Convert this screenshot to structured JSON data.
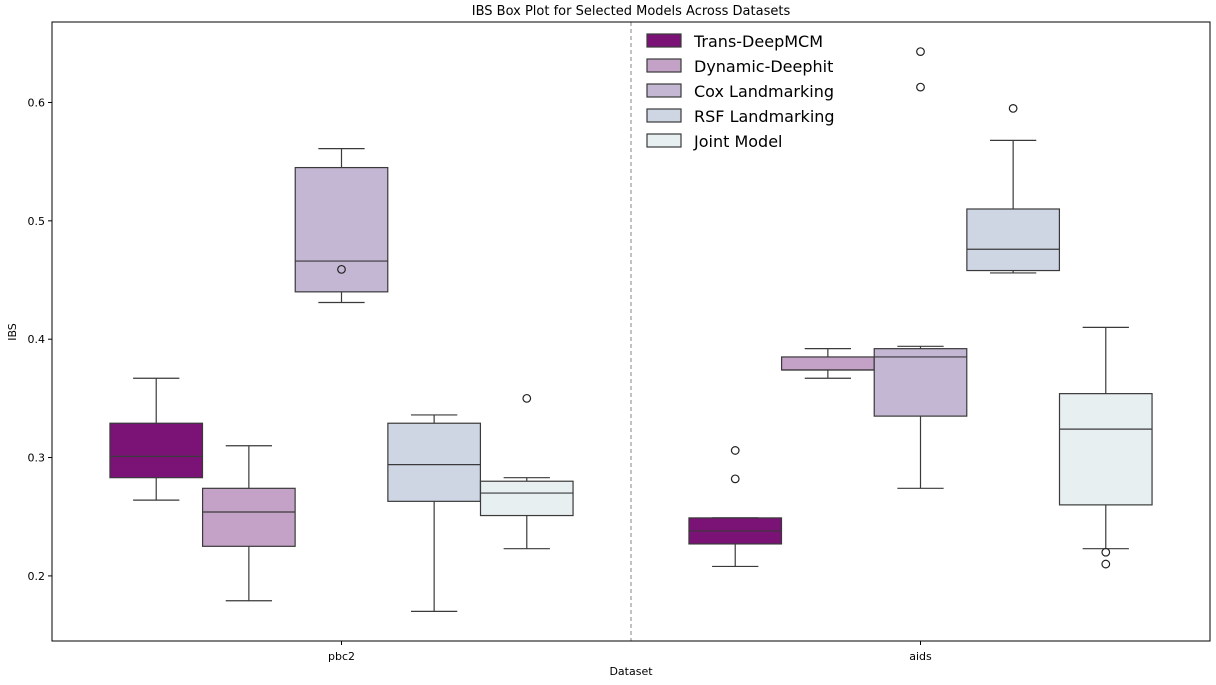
{
  "chart_data": {
    "type": "box",
    "title": "IBS Box Plot for Selected Models Across Datasets",
    "xlabel": "Dataset",
    "ylabel": "IBS",
    "categories": [
      "pbc2",
      "aids"
    ],
    "ylim": [
      0.145,
      0.668
    ],
    "yticks": [
      "0.2",
      "0.3",
      "0.4",
      "0.5",
      "0.6"
    ],
    "legend_position": "top-center",
    "divider": "dashed vertical line between datasets",
    "series": [
      {
        "name": "Trans-DeepMCM",
        "color": "#7b1275",
        "boxes": [
          {
            "whisker_low": 0.264,
            "q1": 0.283,
            "median": 0.301,
            "q3": 0.329,
            "whisker_high": 0.367,
            "outliers": []
          },
          {
            "whisker_low": 0.208,
            "q1": 0.227,
            "median": 0.238,
            "q3": 0.249,
            "whisker_high": 0.249,
            "outliers": [
              0.282,
              0.306
            ]
          }
        ]
      },
      {
        "name": "Dynamic-Deephit",
        "color": "#c4a2c7",
        "boxes": [
          {
            "whisker_low": 0.179,
            "q1": 0.225,
            "median": 0.254,
            "q3": 0.274,
            "whisker_high": 0.31,
            "outliers": []
          },
          {
            "whisker_low": 0.367,
            "q1": 0.374,
            "median": 0.374,
            "q3": 0.385,
            "whisker_high": 0.392,
            "outliers": []
          }
        ]
      },
      {
        "name": "Cox Landmarking",
        "color": "#c3b7d3",
        "boxes": [
          {
            "whisker_low": 0.431,
            "q1": 0.44,
            "median": 0.466,
            "q3": 0.545,
            "whisker_high": 0.561,
            "outliers": [
              0.459
            ]
          },
          {
            "whisker_low": 0.274,
            "q1": 0.335,
            "median": 0.385,
            "q3": 0.392,
            "whisker_high": 0.394,
            "outliers": [
              0.613,
              0.643
            ]
          }
        ]
      },
      {
        "name": "RSF Landmarking",
        "color": "#ced5e3",
        "boxes": [
          {
            "whisker_low": 0.17,
            "q1": 0.263,
            "median": 0.294,
            "q3": 0.329,
            "whisker_high": 0.336,
            "outliers": []
          },
          {
            "whisker_low": 0.456,
            "q1": 0.458,
            "median": 0.476,
            "q3": 0.51,
            "whisker_high": 0.568,
            "outliers": [
              0.595
            ]
          }
        ]
      },
      {
        "name": "Joint Model",
        "color": "#e8eff1",
        "boxes": [
          {
            "whisker_low": 0.223,
            "q1": 0.251,
            "median": 0.27,
            "q3": 0.28,
            "whisker_high": 0.283,
            "outliers": [
              0.35
            ]
          },
          {
            "whisker_low": 0.223,
            "q1": 0.26,
            "median": 0.324,
            "q3": 0.354,
            "whisker_high": 0.41,
            "outliers": [
              0.21,
              0.22
            ]
          }
        ]
      }
    ]
  }
}
